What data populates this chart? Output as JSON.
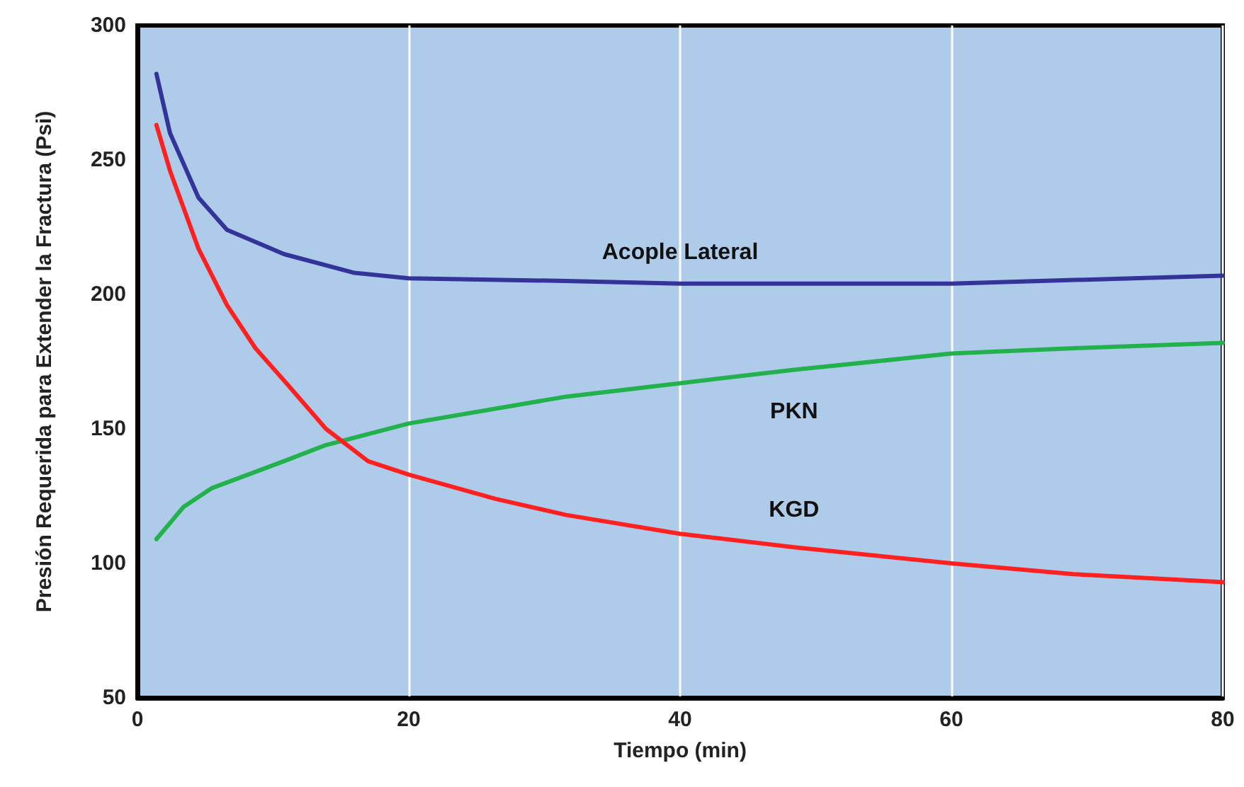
{
  "chart_data": {
    "type": "line",
    "xlabel": "Tiempo (min)",
    "ylabel": "Presión Requerida para Extender la Fractura (Psi)",
    "xlim": [
      0,
      80
    ],
    "xticks": [
      0,
      20,
      40,
      60,
      80
    ],
    "ylim": [
      50,
      300
    ],
    "yticks": [
      50,
      100,
      150,
      200,
      250,
      300
    ],
    "grid": "x",
    "marker": "none",
    "line_style": "solid",
    "series": [
      {
        "name": "Acople Lateral",
        "color": "#333399",
        "x": [
          1.4,
          2.4,
          4.5,
          6.6,
          10.8,
          16,
          20,
          31.6,
          40,
          52.5,
          60,
          80
        ],
        "values": [
          282,
          260,
          236,
          224,
          215,
          208,
          206,
          205,
          204,
          204,
          204,
          207
        ]
      },
      {
        "name": "PKN",
        "color": "#22b14c",
        "x": [
          1.4,
          3.4,
          5.5,
          10.8,
          13.9,
          20,
          31.6,
          40,
          48.4,
          60,
          69,
          80
        ],
        "values": [
          109,
          121,
          128,
          138,
          144,
          152,
          162,
          167,
          172,
          178,
          180,
          182
        ]
      },
      {
        "name": "KGD",
        "color": "#ff2020",
        "x": [
          1.4,
          2.4,
          4.5,
          6.6,
          8.7,
          10.8,
          13.9,
          17,
          20,
          26.4,
          31.6,
          40,
          48.4,
          60,
          69,
          80
        ],
        "values": [
          263,
          246,
          217,
          196,
          180,
          168,
          150,
          138,
          133,
          124,
          118,
          111,
          106,
          100,
          96,
          93
        ]
      }
    ]
  }
}
